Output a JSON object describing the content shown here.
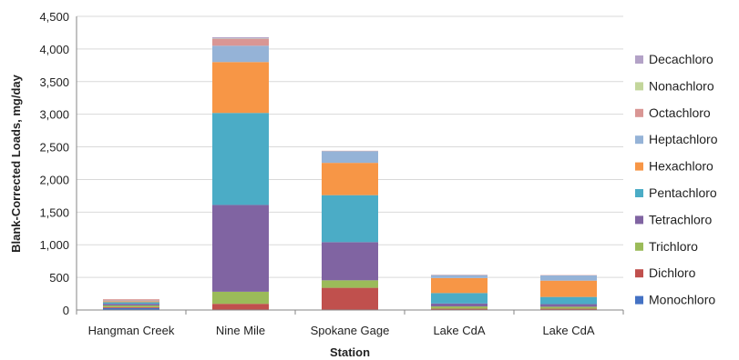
{
  "chart_data": {
    "type": "bar",
    "stacked": true,
    "categories": [
      "Hangman Creek",
      "Nine Mile",
      "Spokane Gage",
      "Lake CdA",
      "Lake CdA"
    ],
    "xlabel": "Station",
    "ylabel": "Blank-Corrected Loads, mg/day",
    "ylim": [
      0,
      4500
    ],
    "yticks": [
      0,
      500,
      1000,
      1500,
      2000,
      2500,
      3000,
      3500,
      4000,
      4500
    ],
    "ytick_labels": [
      "0",
      "500",
      "1,000",
      "1,500",
      "2,000",
      "2,500",
      "3,000",
      "3,500",
      "4,000",
      "4,500"
    ],
    "grid": true,
    "legend_position": "right",
    "series": [
      {
        "name": "Monochloro",
        "color": "#4472C4",
        "values": [
          30,
          5,
          5,
          5,
          5
        ]
      },
      {
        "name": "Dichloro",
        "color": "#C0504D",
        "values": [
          15,
          90,
          335,
          15,
          15
        ]
      },
      {
        "name": "Trichloro",
        "color": "#9BBB59",
        "values": [
          25,
          185,
          115,
          35,
          30
        ]
      },
      {
        "name": "Tetrachloro",
        "color": "#8064A2",
        "values": [
          25,
          1330,
          585,
          45,
          40
        ]
      },
      {
        "name": "Pentachloro",
        "color": "#4BACC6",
        "values": [
          25,
          1410,
          720,
          160,
          110
        ]
      },
      {
        "name": "Hexachloro",
        "color": "#F79646",
        "values": [
          15,
          780,
          495,
          230,
          250
        ]
      },
      {
        "name": "Heptachloro",
        "color": "#95B3D7",
        "values": [
          10,
          250,
          180,
          45,
          80
        ]
      },
      {
        "name": "Octachloro",
        "color": "#D99694",
        "values": [
          20,
          105,
          5,
          5,
          5
        ]
      },
      {
        "name": "Nonachloro",
        "color": "#C3D69B",
        "values": [
          0,
          5,
          0,
          0,
          0
        ]
      },
      {
        "name": "Decachloro",
        "color": "#B3A2C7",
        "values": [
          0,
          20,
          0,
          0,
          0
        ]
      }
    ]
  }
}
